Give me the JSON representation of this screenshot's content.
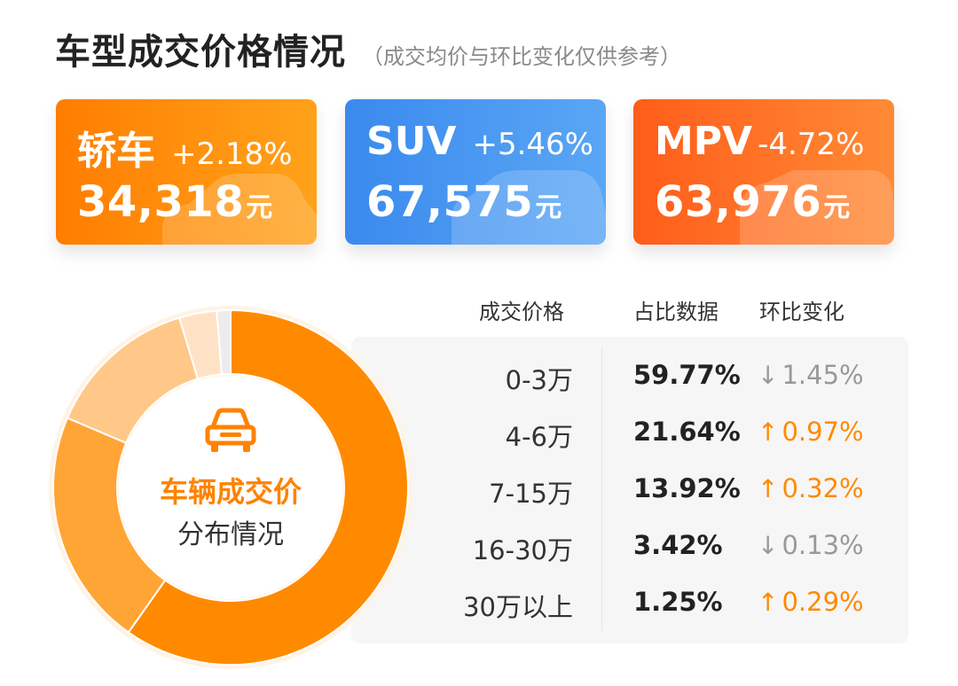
{
  "header": {
    "title": "车型成交价格情况",
    "subtitle": "（成交均价与环比变化仅供参考）"
  },
  "cards": [
    {
      "name": "轿车",
      "change": "+2.18%",
      "price": "34,318",
      "unit": "元",
      "color": "#ff8a00"
    },
    {
      "name": "SUV",
      "change": "+5.46%",
      "price": "67,575",
      "unit": "元",
      "color": "#4a97f0"
    },
    {
      "name": "MPV",
      "change": "-4.72%",
      "price": "63,976",
      "unit": "元",
      "color": "#ff6a22"
    }
  ],
  "table": {
    "headers": [
      "成交价格",
      "占比数据",
      "环比变化"
    ],
    "rows": [
      {
        "range": "0-3万",
        "share": "59.77%",
        "arrow": "↓",
        "change": "1.45%",
        "direction": "down"
      },
      {
        "range": "4-6万",
        "share": "21.64%",
        "arrow": "↑",
        "change": "0.97%",
        "direction": "up"
      },
      {
        "range": "7-15万",
        "share": "13.92%",
        "arrow": "↑",
        "change": "0.32%",
        "direction": "up"
      },
      {
        "range": "16-30万",
        "share": "3.42%",
        "arrow": "↓",
        "change": "0.13%",
        "direction": "down"
      },
      {
        "range": "30万以上",
        "share": "1.25%",
        "arrow": "↑",
        "change": "0.29%",
        "direction": "up"
      }
    ]
  },
  "donut_center": {
    "icon": "car-icon",
    "line1": "车辆成交价",
    "line2": "分布情况"
  },
  "chart_data": {
    "type": "pie",
    "categories": [
      "0-3万",
      "4-6万",
      "7-15万",
      "16-30万",
      "30万以上"
    ],
    "values": [
      59.77,
      21.64,
      13.92,
      3.42,
      1.25
    ],
    "colors": [
      "#ff8a00",
      "#ffa535",
      "#ffc889",
      "#ffe2c6",
      "#ececec"
    ]
  },
  "colors": {
    "accent": "#ff8a00",
    "up": "#ff8a00",
    "down": "#999999"
  }
}
